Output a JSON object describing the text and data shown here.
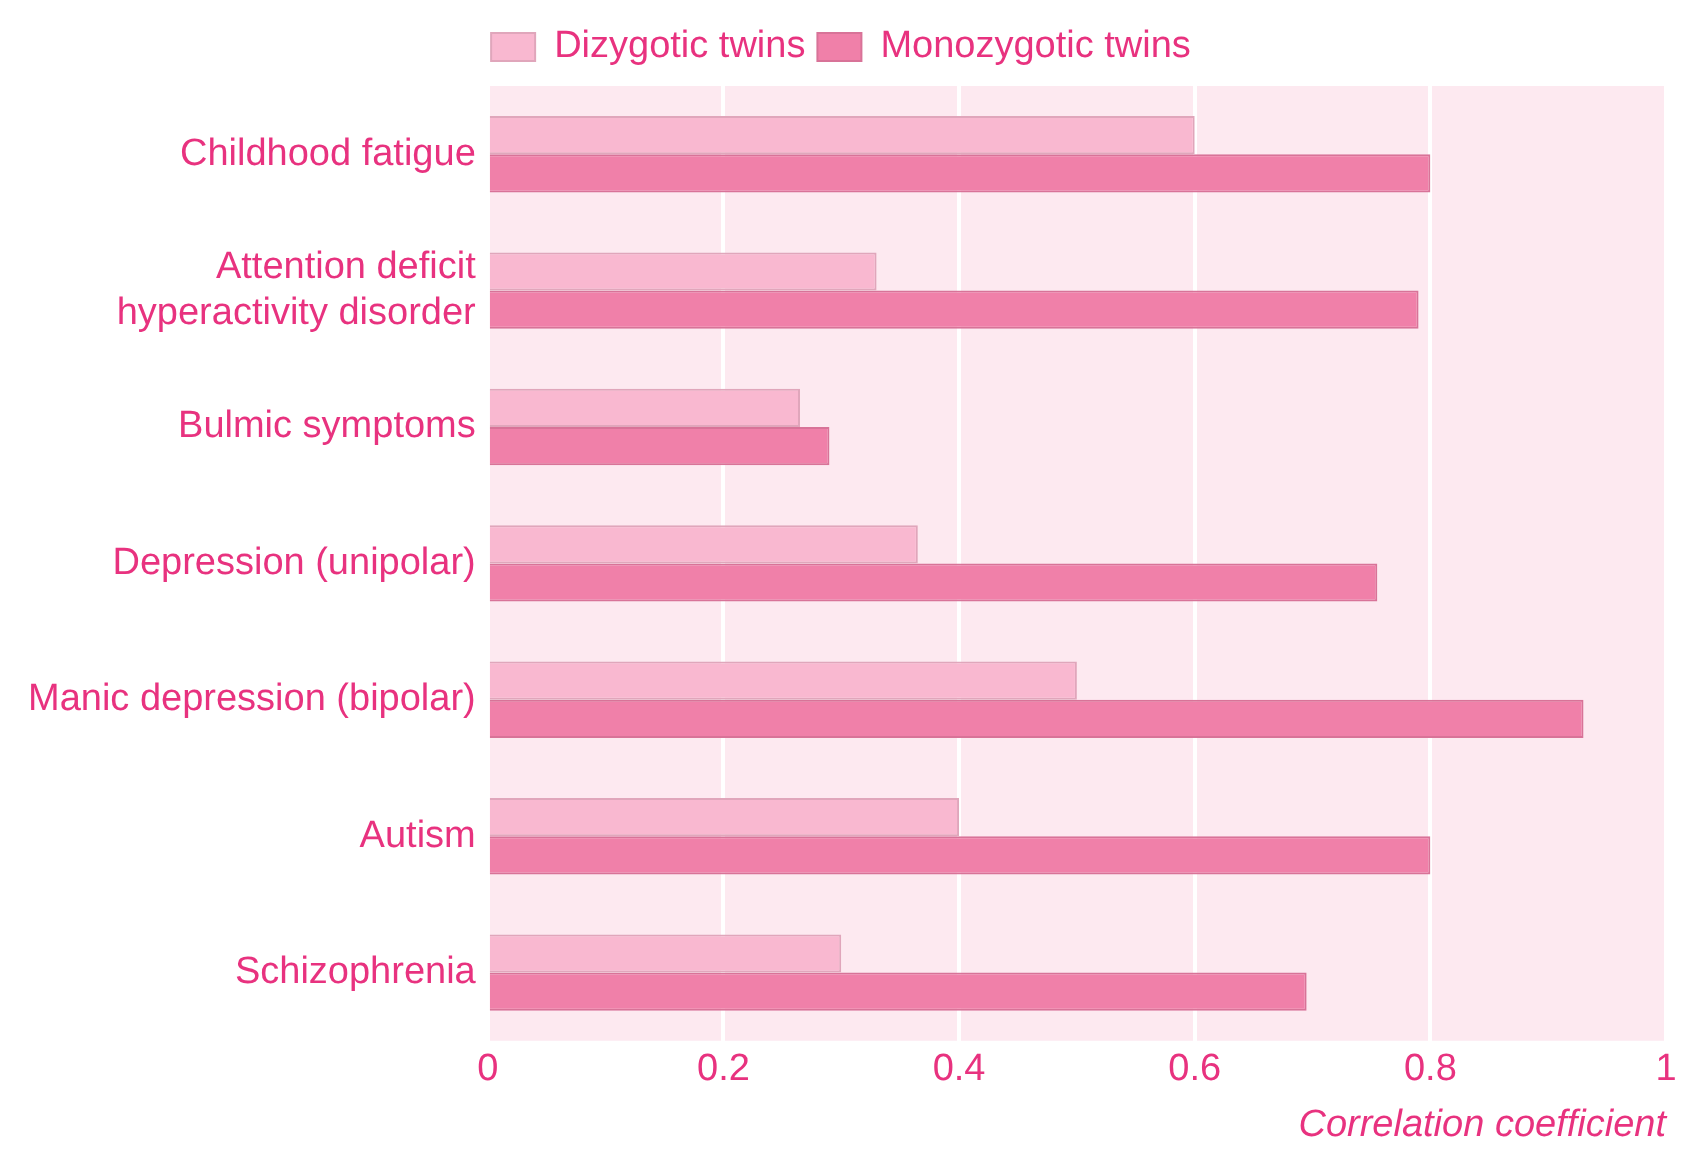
{
  "chart_data": {
    "type": "bar",
    "orientation": "horizontal",
    "xlabel": "Correlation coefficient",
    "categories": [
      "Childhood fatigue",
      "Attention deficit hyperactivity disorder",
      "Bulmic symptoms",
      "Depression (unipolar)",
      "Manic depression (bipolar)",
      "Autism",
      "Schizophrenia"
    ],
    "series": [
      {
        "name": "Dizygotic twins",
        "color": "#f9b8d0",
        "values": [
          0.6,
          0.33,
          0.265,
          0.365,
          0.5,
          0.4,
          0.3
        ]
      },
      {
        "name": "Monozygotic twins",
        "color": "#f080a9",
        "values": [
          0.8,
          0.79,
          0.29,
          0.755,
          0.93,
          0.8,
          0.695
        ]
      }
    ],
    "xlim": [
      0,
      1
    ],
    "xticks": [
      0,
      0.2,
      0.4,
      0.6,
      0.8,
      1
    ],
    "grid": "x",
    "legend": "top"
  }
}
